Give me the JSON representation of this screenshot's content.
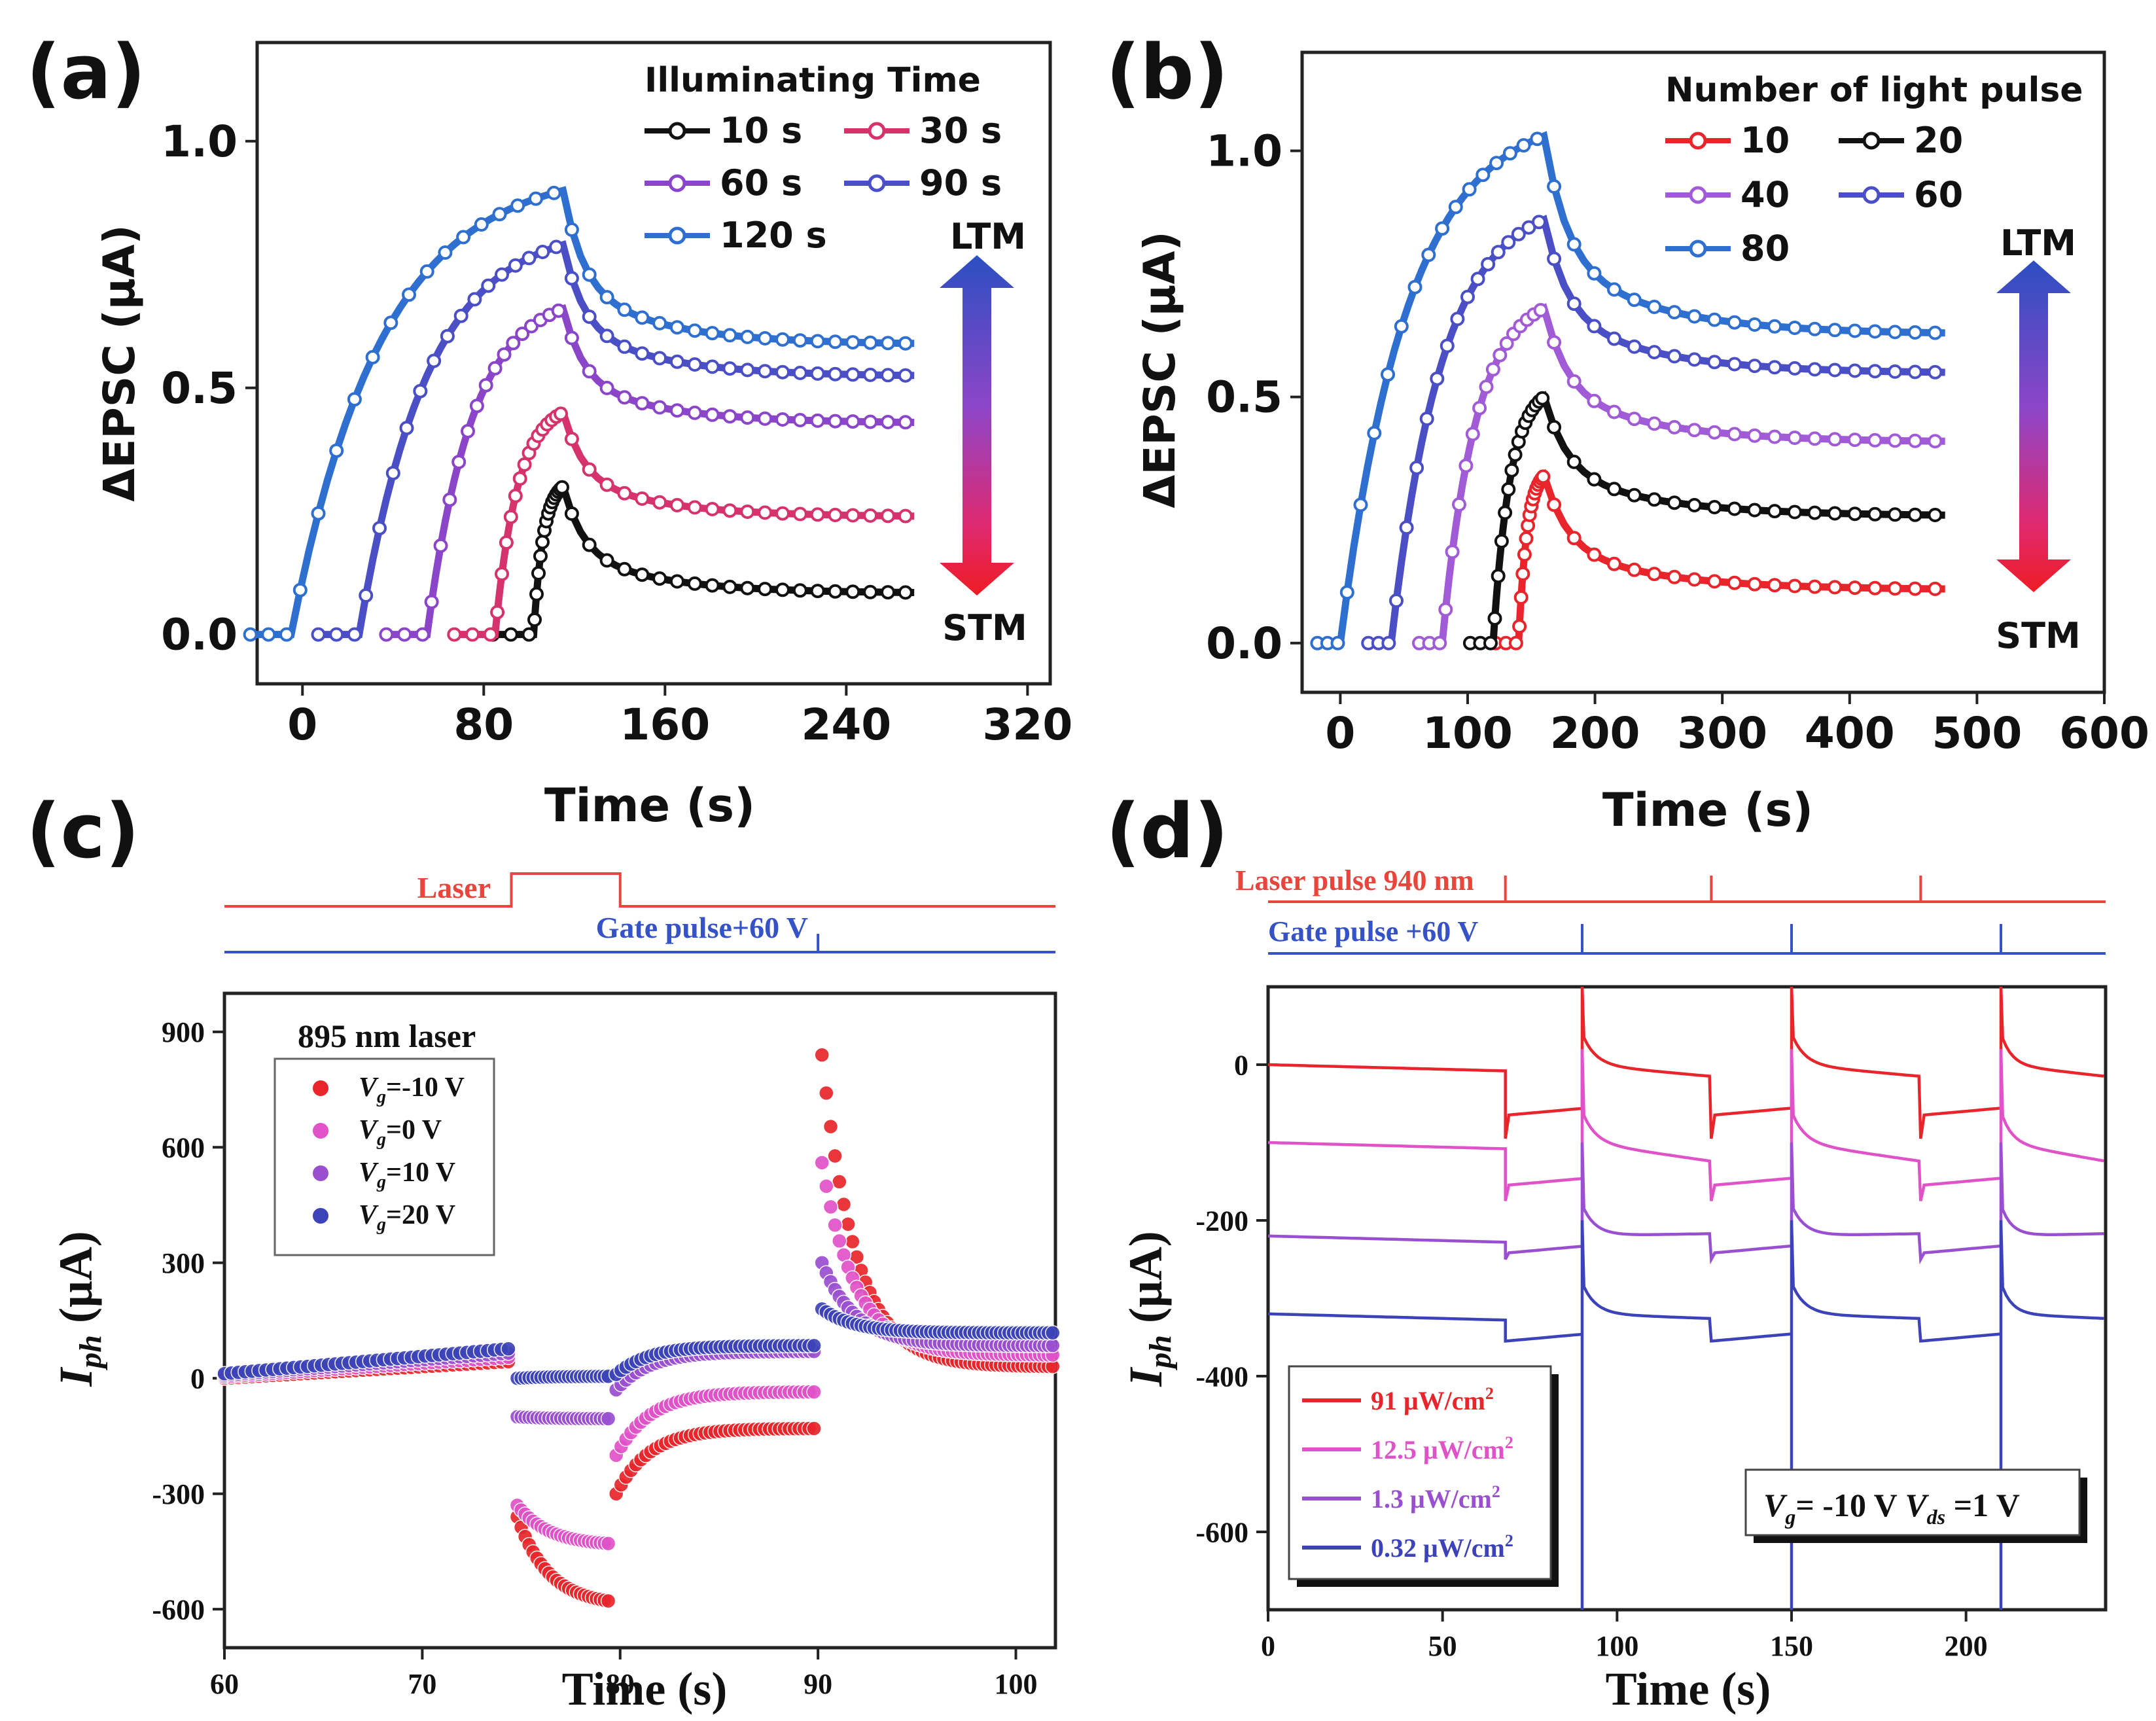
{
  "chart_data": [
    {
      "panel_label": "(a)",
      "type": "line",
      "xlabel": "Time (s)",
      "ylabel": "ΔEPSC (μA)",
      "xlim": [
        -20,
        330
      ],
      "ylim": [
        -0.1,
        1.2
      ],
      "x_ticks": [
        "0",
        "80",
        "160",
        "240",
        "320"
      ],
      "y_ticks": [
        "0.0",
        "0.5",
        "1.0"
      ],
      "legend_title": "Illuminating Time",
      "colorbar_top": "LTM",
      "colorbar_bottom": "STM",
      "series": [
        {
          "name": "10 s",
          "color": "#111111",
          "start": 102,
          "stop": 115,
          "peak": 0.3,
          "end_value": 0.085,
          "x_end": 270
        },
        {
          "name": "30 s",
          "color": "#d6336c",
          "start": 85,
          "stop": 115,
          "peak": 0.45,
          "end_value": 0.24,
          "x_end": 270
        },
        {
          "name": "60 s",
          "color": "#8b45c9",
          "start": 55,
          "stop": 115,
          "peak": 0.66,
          "end_value": 0.43,
          "x_end": 270
        },
        {
          "name": "90 s",
          "color": "#4b4fc6",
          "start": 25,
          "stop": 115,
          "peak": 0.79,
          "end_value": 0.525,
          "x_end": 270
        },
        {
          "name": "120 s",
          "color": "#2f6fd0",
          "start": -5,
          "stop": 115,
          "peak": 0.9,
          "end_value": 0.59,
          "x_end": 270
        }
      ]
    },
    {
      "panel_label": "(b)",
      "type": "line",
      "xlabel": "Time (s)",
      "ylabel": "ΔEPSC (μA)",
      "xlim": [
        -30,
        600
      ],
      "ylim": [
        -0.1,
        1.2
      ],
      "x_ticks": [
        "0",
        "100",
        "200",
        "300",
        "400",
        "500",
        "600"
      ],
      "y_ticks": [
        "0.0",
        "0.5",
        "1.0"
      ],
      "legend_title": "Number of light pulse",
      "colorbar_top": "LTM",
      "colorbar_bottom": "STM",
      "series": [
        {
          "name": "10",
          "color": "#e8252b",
          "start": 140,
          "stop": 160,
          "peak": 0.34,
          "end_value": 0.11,
          "x_end": 475
        },
        {
          "name": "20",
          "color": "#111111",
          "start": 120,
          "stop": 160,
          "peak": 0.5,
          "end_value": 0.26,
          "x_end": 475
        },
        {
          "name": "40",
          "color": "#a25bd6",
          "start": 80,
          "stop": 160,
          "peak": 0.68,
          "end_value": 0.41,
          "x_end": 475
        },
        {
          "name": "60",
          "color": "#4b4fc6",
          "start": 40,
          "stop": 160,
          "peak": 0.86,
          "end_value": 0.55,
          "x_end": 475
        },
        {
          "name": "80",
          "color": "#2f6fd0",
          "start": 0,
          "stop": 160,
          "peak": 1.03,
          "end_value": 0.63,
          "x_end": 475
        }
      ]
    },
    {
      "panel_label": "(c)",
      "type": "scatter",
      "xlabel": "Time (s)",
      "ylabel_main": "I",
      "ylabel_sub": "ph",
      "ylabel_unit": " (μA)",
      "xlim": [
        60,
        102
      ],
      "ylim": [
        -700,
        1000
      ],
      "x_ticks": [
        "60",
        "70",
        "80",
        "90",
        "100"
      ],
      "y_ticks": [
        "-600",
        "-300",
        "0",
        "300",
        "600",
        "900"
      ],
      "legend_title": "895 nm laser",
      "laser_label": "Laser",
      "laser_on": [
        74.5,
        80
      ],
      "gate_label": "Gate pulse+60 V",
      "gate_time": 90,
      "series": [
        {
          "prefix": "V",
          "sub": "g",
          "name": "=-10 V",
          "color": "#e8252b",
          "low_a": -360,
          "low_b": -580,
          "mid_a": -300,
          "mid_b": -130,
          "spike": 840,
          "final": 30
        },
        {
          "prefix": "V",
          "sub": "g",
          "name": "=0 V",
          "color": "#e052c8",
          "low_a": -330,
          "low_b": -430,
          "mid_a": -200,
          "mid_b": -35,
          "spike": 560,
          "final": 60
        },
        {
          "prefix": "V",
          "sub": "g",
          "name": "=10 V",
          "color": "#9a4fd0",
          "low_a": -100,
          "low_b": -105,
          "mid_a": -30,
          "mid_b": 70,
          "spike": 300,
          "final": 85
        },
        {
          "prefix": "V",
          "sub": "g",
          "name": "=20 V",
          "color": "#3c43b8",
          "low_a": 0,
          "low_b": 5,
          "mid_a": 10,
          "mid_b": 85,
          "spike": 180,
          "final": 118
        }
      ]
    },
    {
      "panel_label": "(d)",
      "type": "line",
      "xlabel": "Time (s)",
      "ylabel_main": "I",
      "ylabel_sub": "ph",
      "ylabel_unit": " (μA)",
      "xlim": [
        0,
        240
      ],
      "ylim": [
        -700,
        100
      ],
      "x_ticks": [
        "0",
        "50",
        "100",
        "150",
        "200"
      ],
      "y_ticks": [
        "-600",
        "-400",
        "-200",
        "0"
      ],
      "laser_label": "Laser pulse 940 nm",
      "laser_times": [
        68,
        127,
        187
      ],
      "gate_label": "Gate pulse +60 V",
      "gate_times": [
        90,
        150,
        210
      ],
      "condition_a_main": "V",
      "condition_a_sub": "g",
      "condition_a_rest": "= -10 V ",
      "condition_b_main": "V",
      "condition_b_sub": "ds",
      "condition_b_rest": " =1 V",
      "series": [
        {
          "name": "91 μW/cm",
          "sup": "2",
          "color": "#e8252b",
          "base": 0,
          "step": -65,
          "spike_depth": -95,
          "end_value": -25
        },
        {
          "name": "12.5 μW/cm",
          "sup": "2",
          "color": "#e052c8",
          "base": -100,
          "step": -55,
          "spike_depth": -75,
          "end_value": -140
        },
        {
          "name": "1.3 μW/cm",
          "sup": "2",
          "color": "#9a4fd0",
          "base": -220,
          "step": -22,
          "spike_depth": -30,
          "end_value": -215
        },
        {
          "name": "0.32 μW/cm",
          "sup": "2",
          "color": "#3c43b8",
          "base": -320,
          "step": -35,
          "spike_depth": -35,
          "end_value": -330
        }
      ]
    }
  ]
}
